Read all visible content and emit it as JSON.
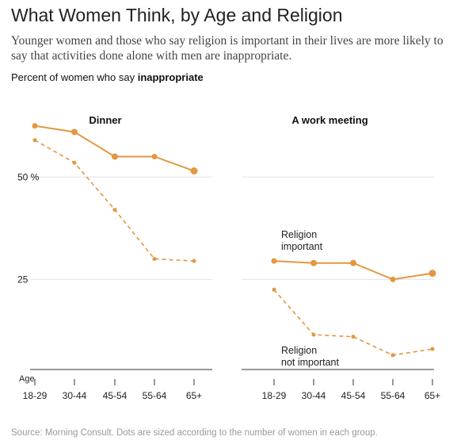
{
  "header": {
    "title": "What Women Think, by Age and Religion",
    "subtitle": "Younger women and those who say religion is important in their lives are more likely to say that activities done alone with men are inappropriate.",
    "label_prefix": "Percent of women who say ",
    "label_bold": "inappropriate"
  },
  "footer": {
    "source": "Source: Morning Consult. Dots are sized according to the number of women in each group."
  },
  "colors": {
    "series": "#e39840",
    "grid": "#e2e2e2",
    "axis": "#333333"
  },
  "chart_data": [
    {
      "type": "line",
      "title": "Dinner",
      "xlabel": "Age",
      "categories": [
        "18-29",
        "30-44",
        "45-54",
        "55-64",
        "65+"
      ],
      "ylim": [
        3,
        70
      ],
      "yticks": [
        {
          "value": 50,
          "label": "50 %"
        },
        {
          "value": 25,
          "label": "25"
        }
      ],
      "series": [
        {
          "name": "Religion important",
          "style": "solid",
          "values": [
            62.5,
            61,
            55,
            55,
            51.5
          ],
          "dot_sizes": [
            3.5,
            4,
            4,
            3.5,
            4.5
          ]
        },
        {
          "name": "Religion not important",
          "style": "dashed",
          "values": [
            59,
            53.5,
            42,
            30,
            29.5
          ],
          "dot_sizes": [
            2.5,
            2.5,
            2.5,
            2.5,
            2.5
          ]
        }
      ]
    },
    {
      "type": "line",
      "title": "A work meeting",
      "xlabel": "",
      "categories": [
        "18-29",
        "30-44",
        "45-54",
        "55-64",
        "65+"
      ],
      "ylim": [
        3,
        70
      ],
      "yticks": [
        {
          "value": 50,
          "label": ""
        },
        {
          "value": 25,
          "label": ""
        }
      ],
      "series": [
        {
          "name": "Religion important",
          "style": "solid",
          "values": [
            29.5,
            29,
            29,
            25,
            26.5
          ],
          "dot_sizes": [
            3.5,
            4,
            4,
            3.5,
            4.5
          ]
        },
        {
          "name": "Religion not important",
          "style": "dashed",
          "values": [
            22.5,
            11.5,
            11,
            6.5,
            8
          ],
          "dot_sizes": [
            2.5,
            2.5,
            2.5,
            2.5,
            2.5
          ]
        }
      ]
    }
  ]
}
